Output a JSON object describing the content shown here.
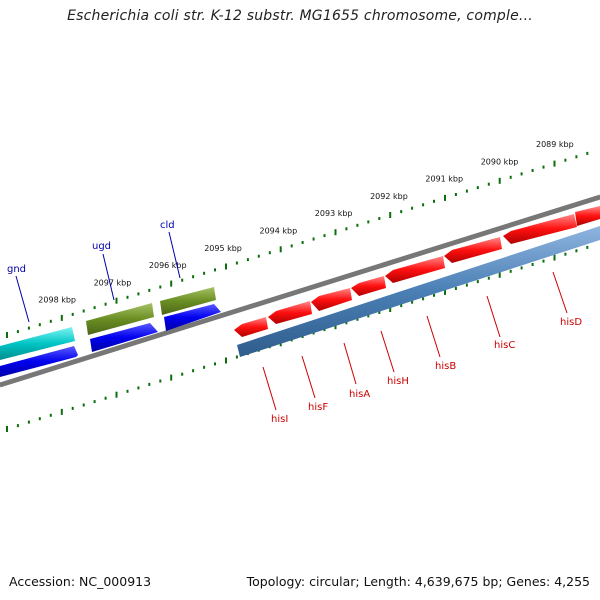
{
  "title": "Escherichia coli str. K-12 substr. MG1655 chromosome, comple...",
  "footer": {
    "accession": "Accession: NC_000913",
    "topology": "Topology: circular; Length: 4,639,675 bp; Genes: 4,255"
  },
  "scale_labels": [
    "2089 kbp",
    "2090 kbp",
    "2091 kbp",
    "2092 kbp",
    "2093 kbp",
    "2094 kbp",
    "2095 kbp",
    "2096 kbp",
    "2097 kbp",
    "2098 kbp"
  ],
  "genes_top_strand": [
    {
      "name": "gnd",
      "color": "#00c5c5"
    },
    {
      "name": "ugd",
      "color": "#6b8e23"
    },
    {
      "name": "cld",
      "color": "#6b8e23"
    }
  ],
  "genes_bottom_strand": [
    {
      "name": "hisI",
      "color": "#ff0000"
    },
    {
      "name": "hisF",
      "color": "#ff0000"
    },
    {
      "name": "hisA",
      "color": "#ff0000"
    },
    {
      "name": "hisH",
      "color": "#ff0000"
    },
    {
      "name": "hisB",
      "color": "#ff0000"
    },
    {
      "name": "hisC",
      "color": "#ff0000"
    },
    {
      "name": "hisD",
      "color": "#ff0000"
    }
  ],
  "colors": {
    "scale_ticks": "#0a6f0a",
    "backbone": "#777777",
    "cds": "#0000ee",
    "operon": "#4a7fb5",
    "top_label": "#0000aa",
    "bottom_label": "#cc0000"
  }
}
